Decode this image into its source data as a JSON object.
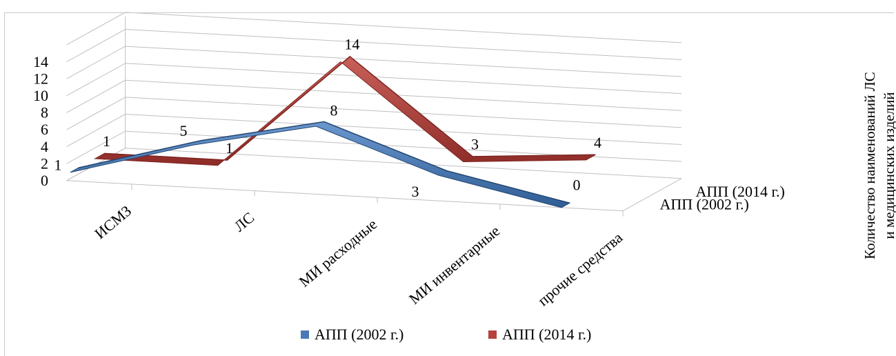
{
  "chart_data": {
    "type": "line",
    "subtype": "3d-line",
    "categories": [
      "ИСМЗ",
      "ЛС",
      "МИ расходные",
      "МИ инвентарные",
      "прочие средства"
    ],
    "series": [
      {
        "name": "АПП (2002 г.)",
        "color": "#4a7ab5",
        "values": [
          1,
          5,
          8,
          3,
          0
        ]
      },
      {
        "name": "АПП (2014 г.)",
        "color": "#b5413c",
        "values": [
          1,
          1,
          14,
          3,
          4
        ]
      }
    ],
    "y_ticks": [
      "0",
      "2",
      "4",
      "6",
      "8",
      "10",
      "12",
      "14"
    ],
    "ylim": [
      0,
      14
    ],
    "depth_labels": [
      "АПП (2014 г.)",
      "АПП (2002 г.)"
    ],
    "zlabel": "Количество наименований ЛС и медицинских изделий",
    "legend": [
      "АПП (2002 г.)",
      "АПП (2014 г.)"
    ],
    "legend_position": "bottom",
    "grid": true
  }
}
